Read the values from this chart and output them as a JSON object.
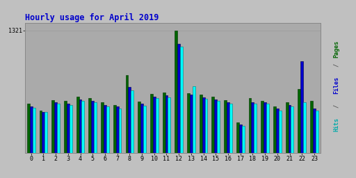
{
  "title": "Hourly usage for April 2019",
  "hours": [
    0,
    1,
    2,
    3,
    4,
    5,
    6,
    7,
    8,
    9,
    10,
    11,
    12,
    13,
    14,
    15,
    16,
    17,
    18,
    19,
    20,
    21,
    22,
    23
  ],
  "pages": [
    530,
    460,
    570,
    560,
    610,
    590,
    545,
    520,
    840,
    555,
    640,
    650,
    1321,
    645,
    630,
    610,
    570,
    330,
    590,
    565,
    500,
    550,
    690,
    565
  ],
  "files": [
    500,
    445,
    550,
    530,
    580,
    560,
    520,
    500,
    710,
    535,
    610,
    620,
    1175,
    630,
    600,
    580,
    545,
    310,
    548,
    545,
    478,
    520,
    990,
    480
  ],
  "hits": [
    490,
    440,
    535,
    515,
    563,
    548,
    503,
    482,
    675,
    512,
    592,
    602,
    1148,
    720,
    582,
    562,
    535,
    292,
    530,
    530,
    460,
    500,
    550,
    460
  ],
  "color_pages": "#006400",
  "color_files": "#0000cd",
  "color_hits": "#00ffff",
  "edge_pages": "#003300",
  "edge_files": "#000044",
  "edge_hits": "#007777",
  "bg_outer": "#c0c0c0",
  "bg_plot": "#aaaaaa",
  "title_color": "#0000cc",
  "pages_label_color": "#006400",
  "files_label_color": "#0000cd",
  "hits_label_color": "#00aaaa",
  "ymax": 1400,
  "ytick_val": 1321,
  "bar_width": 0.22
}
